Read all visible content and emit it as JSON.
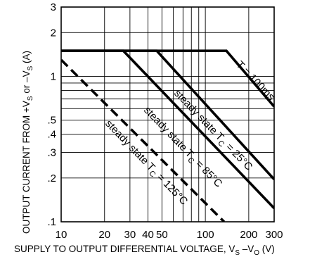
{
  "chart_data": {
    "type": "line",
    "title": "",
    "x_scale": "log",
    "y_scale": "log",
    "xlim": [
      10,
      300
    ],
    "ylim": [
      0.1,
      3
    ],
    "xlabel_main": "SUPPLY TO OUTPUT DIFFERENTIAL VOLTAGE, V",
    "xlabel_sub_s": "S",
    "xlabel_dash": " –V",
    "xlabel_sub_o": "O",
    "xlabel_unit": " (V)",
    "ylabel_main": "OUTPUT CURRENT FROM +V",
    "ylabel_sub_s1": "S",
    "ylabel_or": " or –V",
    "ylabel_sub_s2": "S",
    "ylabel_unit": " (A)",
    "x_ticks": [
      {
        "value": 10,
        "label": "10"
      },
      {
        "value": 20,
        "label": "20"
      },
      {
        "value": 30,
        "label": "30"
      },
      {
        "value": 40,
        "label": "40"
      },
      {
        "value": 50,
        "label": "50"
      },
      {
        "value": 100,
        "label": "100"
      },
      {
        "value": 200,
        "label": "200"
      },
      {
        "value": 300,
        "label": "300"
      }
    ],
    "y_ticks": [
      {
        "value": 0.1,
        "label": ".1"
      },
      {
        "value": 0.2,
        "label": ".2"
      },
      {
        "value": 0.3,
        "label": ".3"
      },
      {
        "value": 0.4,
        "label": ".4"
      },
      {
        "value": 0.5,
        "label": ".5"
      },
      {
        "value": 1,
        "label": "1"
      },
      {
        "value": 2,
        "label": "2"
      },
      {
        "value": 3,
        "label": "3"
      }
    ],
    "series": [
      {
        "label_main": "T = 100ms",
        "style": "solid",
        "points": [
          [
            10,
            1.5
          ],
          [
            140,
            1.5
          ],
          [
            300,
            0.62
          ]
        ]
      },
      {
        "label_main": "steady state T",
        "label_sub": "C",
        "label_tail": " = 25°C",
        "style": "solid",
        "points": [
          [
            10,
            1.5
          ],
          [
            46,
            1.5
          ],
          [
            300,
            0.196
          ]
        ]
      },
      {
        "label_main": "steady state T",
        "label_sub": "C",
        "label_tail": " = 85°C",
        "style": "solid",
        "points": [
          [
            10,
            1.5
          ],
          [
            27,
            1.5
          ],
          [
            300,
            0.124
          ]
        ]
      },
      {
        "label_main": "steady state T",
        "label_sub": "C",
        "label_tail": " = 125°C",
        "style": "dashed",
        "points": [
          [
            10,
            1.3
          ],
          [
            135,
            0.1
          ]
        ]
      }
    ]
  }
}
